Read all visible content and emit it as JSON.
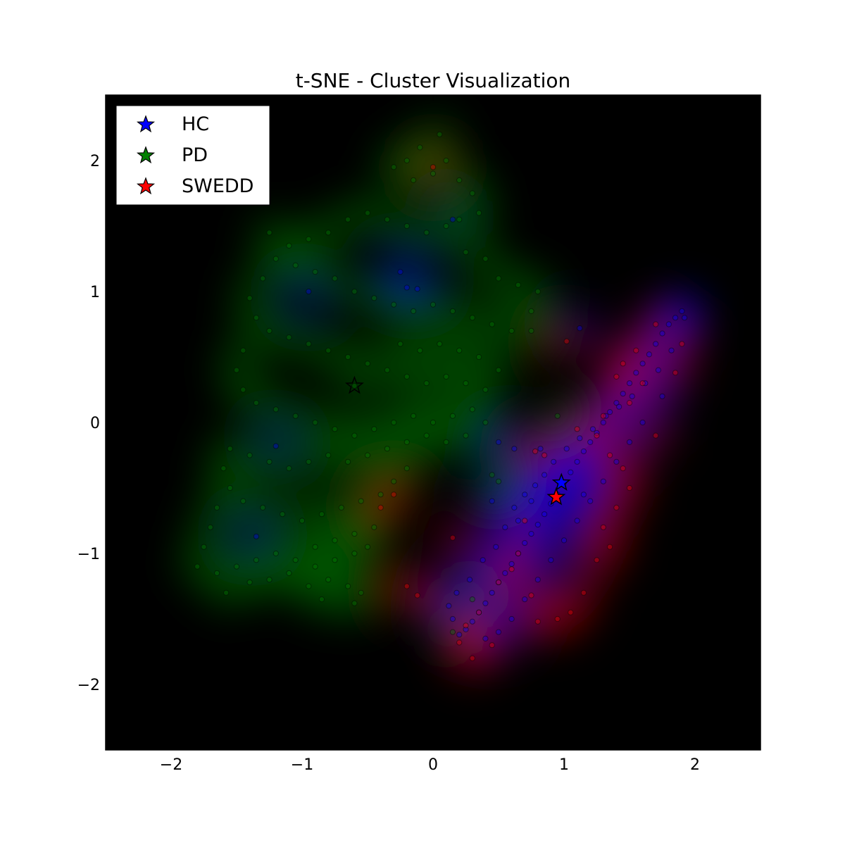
{
  "chart_data": {
    "type": "scatter",
    "title": "t-SNE - Cluster Visualization",
    "xlabel": "",
    "ylabel": "",
    "xlim": [
      -2.5,
      2.5
    ],
    "ylim": [
      -2.5,
      2.5
    ],
    "x_ticks": [
      -2,
      -1,
      0,
      1,
      2
    ],
    "y_ticks": [
      -2,
      -1,
      0,
      1,
      2
    ],
    "x_tick_labels": [
      "−2",
      "−1",
      "0",
      "1",
      "2"
    ],
    "y_tick_labels": [
      "−2",
      "−1",
      "0",
      "1",
      "2"
    ],
    "grid": false,
    "background": "#000000",
    "legend_position": "top-left",
    "marker_style": "star for cluster centers, small circles for samples",
    "series": [
      {
        "name": "HC",
        "color": "#0000ff",
        "center": [
          0.98,
          -0.46
        ],
        "points": [
          [
            1.9,
            0.85
          ],
          [
            1.85,
            0.8
          ],
          [
            1.8,
            0.75
          ],
          [
            1.75,
            0.68
          ],
          [
            1.7,
            0.6
          ],
          [
            1.65,
            0.52
          ],
          [
            1.6,
            0.45
          ],
          [
            1.55,
            0.38
          ],
          [
            1.5,
            0.3
          ],
          [
            1.45,
            0.22
          ],
          [
            1.4,
            0.15
          ],
          [
            1.35,
            0.08
          ],
          [
            1.3,
            0.0
          ],
          [
            1.25,
            -0.08
          ],
          [
            1.2,
            -0.15
          ],
          [
            1.15,
            -0.22
          ],
          [
            1.1,
            -0.3
          ],
          [
            1.05,
            -0.38
          ],
          [
            1.0,
            -0.46
          ],
          [
            0.95,
            -0.55
          ],
          [
            0.9,
            -0.62
          ],
          [
            0.85,
            -0.7
          ],
          [
            0.8,
            -0.78
          ],
          [
            0.75,
            -0.85
          ],
          [
            0.7,
            -0.92
          ],
          [
            0.65,
            -1.0
          ],
          [
            0.6,
            -1.08
          ],
          [
            0.55,
            -1.15
          ],
          [
            0.5,
            -1.22
          ],
          [
            0.45,
            -1.3
          ],
          [
            0.4,
            -1.38
          ],
          [
            0.35,
            -1.45
          ],
          [
            0.3,
            -1.52
          ],
          [
            0.25,
            -1.58
          ],
          [
            0.2,
            -1.62
          ],
          [
            0.15,
            -1.5
          ],
          [
            0.12,
            -1.4
          ],
          [
            0.18,
            -1.3
          ],
          [
            0.28,
            -1.2
          ],
          [
            0.38,
            -1.05
          ],
          [
            0.48,
            -0.95
          ],
          [
            0.55,
            -0.8
          ],
          [
            0.62,
            -0.65
          ],
          [
            0.7,
            -0.55
          ],
          [
            0.78,
            -0.48
          ],
          [
            0.85,
            -0.4
          ],
          [
            0.92,
            -0.3
          ],
          [
            1.02,
            -0.2
          ],
          [
            1.12,
            -0.12
          ],
          [
            1.22,
            -0.05
          ],
          [
            1.32,
            0.05
          ],
          [
            1.42,
            0.12
          ],
          [
            1.52,
            0.2
          ],
          [
            1.62,
            0.3
          ],
          [
            1.72,
            0.4
          ],
          [
            1.82,
            0.55
          ],
          [
            1.92,
            0.8
          ],
          [
            1.75,
            0.2
          ],
          [
            1.6,
            0.0
          ],
          [
            1.5,
            -0.15
          ],
          [
            1.4,
            -0.3
          ],
          [
            1.3,
            -0.45
          ],
          [
            1.2,
            -0.6
          ],
          [
            1.1,
            -0.75
          ],
          [
            1.0,
            -0.9
          ],
          [
            0.9,
            -1.05
          ],
          [
            0.8,
            -1.2
          ],
          [
            0.7,
            -1.35
          ],
          [
            0.6,
            -1.5
          ],
          [
            0.5,
            -1.6
          ],
          [
            0.4,
            -1.65
          ],
          [
            0.65,
            -0.75
          ],
          [
            0.75,
            -0.6
          ],
          [
            0.45,
            -0.6
          ],
          [
            0.5,
            -0.15
          ],
          [
            0.62,
            -0.2
          ],
          [
            0.82,
            -0.2
          ],
          [
            1.15,
            -0.55
          ],
          [
            -0.95,
            1.0
          ],
          [
            -0.25,
            1.15
          ],
          [
            -0.2,
            1.03
          ],
          [
            -0.12,
            1.02
          ],
          [
            0.15,
            1.55
          ],
          [
            -1.2,
            -0.18
          ],
          [
            -1.35,
            -0.87
          ],
          [
            1.12,
            0.72
          ]
        ]
      },
      {
        "name": "PD",
        "color": "#008000",
        "center": [
          -0.6,
          0.28
        ],
        "points": [
          [
            0.05,
            2.2
          ],
          [
            -0.1,
            2.1
          ],
          [
            -0.2,
            2.0
          ],
          [
            -0.3,
            1.95
          ],
          [
            -0.15,
            1.85
          ],
          [
            0.0,
            1.9
          ],
          [
            0.1,
            2.0
          ],
          [
            0.2,
            1.85
          ],
          [
            0.3,
            1.75
          ],
          [
            0.35,
            1.6
          ],
          [
            0.2,
            1.55
          ],
          [
            0.1,
            1.5
          ],
          [
            -0.05,
            1.45
          ],
          [
            -0.2,
            1.5
          ],
          [
            -0.35,
            1.55
          ],
          [
            -0.5,
            1.6
          ],
          [
            -0.65,
            1.55
          ],
          [
            -0.8,
            1.45
          ],
          [
            -0.95,
            1.4
          ],
          [
            -1.1,
            1.35
          ],
          [
            -1.25,
            1.45
          ],
          [
            -1.2,
            1.25
          ],
          [
            -1.05,
            1.2
          ],
          [
            -0.9,
            1.15
          ],
          [
            -0.75,
            1.1
          ],
          [
            -0.6,
            1.0
          ],
          [
            -0.45,
            0.95
          ],
          [
            -0.3,
            0.9
          ],
          [
            -0.15,
            0.85
          ],
          [
            0.0,
            0.9
          ],
          [
            0.15,
            0.85
          ],
          [
            0.3,
            0.8
          ],
          [
            0.45,
            0.75
          ],
          [
            0.6,
            0.7
          ],
          [
            0.75,
            0.85
          ],
          [
            0.8,
            1.0
          ],
          [
            0.65,
            1.05
          ],
          [
            0.5,
            1.1
          ],
          [
            0.4,
            1.25
          ],
          [
            0.25,
            1.3
          ],
          [
            -1.3,
            1.1
          ],
          [
            -1.4,
            0.95
          ],
          [
            -1.35,
            0.8
          ],
          [
            -1.25,
            0.7
          ],
          [
            -1.1,
            0.65
          ],
          [
            -0.95,
            0.6
          ],
          [
            -0.8,
            0.55
          ],
          [
            -0.65,
            0.5
          ],
          [
            -0.5,
            0.45
          ],
          [
            -0.35,
            0.4
          ],
          [
            -0.2,
            0.35
          ],
          [
            -0.05,
            0.3
          ],
          [
            0.1,
            0.35
          ],
          [
            0.25,
            0.3
          ],
          [
            0.4,
            0.25
          ],
          [
            0.5,
            0.4
          ],
          [
            0.35,
            0.5
          ],
          [
            0.2,
            0.55
          ],
          [
            0.05,
            0.6
          ],
          [
            -0.1,
            0.55
          ],
          [
            -0.25,
            0.6
          ],
          [
            -1.45,
            0.55
          ],
          [
            -1.5,
            0.4
          ],
          [
            -1.45,
            0.25
          ],
          [
            -1.35,
            0.15
          ],
          [
            -1.2,
            0.1
          ],
          [
            -1.05,
            0.05
          ],
          [
            -0.9,
            0.0
          ],
          [
            -0.75,
            -0.05
          ],
          [
            -0.6,
            -0.1
          ],
          [
            -0.45,
            -0.05
          ],
          [
            -0.3,
            0.0
          ],
          [
            -0.15,
            0.05
          ],
          [
            0.0,
            0.0
          ],
          [
            0.15,
            0.05
          ],
          [
            0.3,
            0.1
          ],
          [
            0.4,
            0.0
          ],
          [
            0.25,
            -0.1
          ],
          [
            0.1,
            -0.15
          ],
          [
            -0.05,
            -0.1
          ],
          [
            -0.2,
            -0.15
          ],
          [
            -0.35,
            -0.2
          ],
          [
            -0.5,
            -0.25
          ],
          [
            -0.65,
            -0.3
          ],
          [
            -0.8,
            -0.25
          ],
          [
            -0.95,
            -0.3
          ],
          [
            -1.1,
            -0.35
          ],
          [
            -1.25,
            -0.3
          ],
          [
            -1.4,
            -0.25
          ],
          [
            -1.55,
            -0.2
          ],
          [
            -1.6,
            -0.35
          ],
          [
            -1.55,
            -0.5
          ],
          [
            -1.45,
            -0.6
          ],
          [
            -1.3,
            -0.65
          ],
          [
            -1.15,
            -0.7
          ],
          [
            -1.0,
            -0.75
          ],
          [
            -0.85,
            -0.7
          ],
          [
            -0.7,
            -0.65
          ],
          [
            -0.55,
            -0.6
          ],
          [
            -0.4,
            -0.55
          ],
          [
            -0.3,
            -0.45
          ],
          [
            -0.2,
            -0.35
          ],
          [
            -1.65,
            -0.65
          ],
          [
            -1.7,
            -0.8
          ],
          [
            -1.75,
            -0.95
          ],
          [
            -1.8,
            -1.1
          ],
          [
            -1.65,
            -1.15
          ],
          [
            -1.5,
            -1.1
          ],
          [
            -1.35,
            -1.05
          ],
          [
            -1.2,
            -1.0
          ],
          [
            -1.05,
            -1.05
          ],
          [
            -0.9,
            -1.1
          ],
          [
            -0.75,
            -1.05
          ],
          [
            -0.6,
            -1.0
          ],
          [
            -0.5,
            -0.95
          ],
          [
            -0.45,
            -0.8
          ],
          [
            -0.6,
            -0.85
          ],
          [
            -0.75,
            -0.9
          ],
          [
            -0.9,
            -0.95
          ],
          [
            -1.1,
            -1.15
          ],
          [
            -1.25,
            -1.2
          ],
          [
            -1.4,
            -1.22
          ],
          [
            -0.95,
            -1.25
          ],
          [
            -0.8,
            -1.2
          ],
          [
            -0.65,
            -1.25
          ],
          [
            -0.55,
            -1.3
          ],
          [
            -0.6,
            -1.38
          ],
          [
            -0.85,
            -1.35
          ],
          [
            -1.58,
            -1.3
          ],
          [
            -0.6,
            0.28
          ],
          [
            0.75,
            0.7
          ],
          [
            0.45,
            -0.4
          ],
          [
            0.5,
            -0.45
          ],
          [
            0.3,
            -1.35
          ],
          [
            0.95,
            0.05
          ],
          [
            0.15,
            -1.6
          ]
        ]
      },
      {
        "name": "SWEDD",
        "color": "#ff0000",
        "center": [
          0.94,
          -0.57
        ],
        "points": [
          [
            1.7,
            0.75
          ],
          [
            1.55,
            0.55
          ],
          [
            1.45,
            0.45
          ],
          [
            1.4,
            0.35
          ],
          [
            1.5,
            0.15
          ],
          [
            1.3,
            0.05
          ],
          [
            1.25,
            -0.1
          ],
          [
            1.1,
            -0.05
          ],
          [
            1.35,
            -0.25
          ],
          [
            1.45,
            -0.35
          ],
          [
            1.5,
            -0.5
          ],
          [
            1.4,
            -0.65
          ],
          [
            1.3,
            -0.8
          ],
          [
            1.35,
            -0.95
          ],
          [
            1.25,
            -1.05
          ],
          [
            1.15,
            -1.3
          ],
          [
            1.05,
            -1.45
          ],
          [
            0.95,
            -1.5
          ],
          [
            0.8,
            -1.52
          ],
          [
            0.75,
            -1.32
          ],
          [
            0.6,
            -1.12
          ],
          [
            0.5,
            -1.22
          ],
          [
            0.35,
            -1.45
          ],
          [
            0.25,
            -1.55
          ],
          [
            0.2,
            -1.68
          ],
          [
            0.3,
            -1.8
          ],
          [
            0.45,
            -1.7
          ],
          [
            0.65,
            -1.0
          ],
          [
            0.7,
            -0.75
          ],
          [
            0.78,
            -0.22
          ],
          [
            0.85,
            -0.25
          ],
          [
            1.02,
            0.62
          ],
          [
            1.9,
            0.6
          ],
          [
            0.0,
            1.95
          ],
          [
            -0.4,
            -0.65
          ],
          [
            -0.3,
            -0.55
          ],
          [
            -0.2,
            -1.25
          ],
          [
            -0.12,
            -1.32
          ],
          [
            0.15,
            -0.88
          ],
          [
            1.85,
            0.38
          ],
          [
            1.6,
            0.3
          ],
          [
            1.7,
            -0.1
          ]
        ]
      }
    ]
  }
}
